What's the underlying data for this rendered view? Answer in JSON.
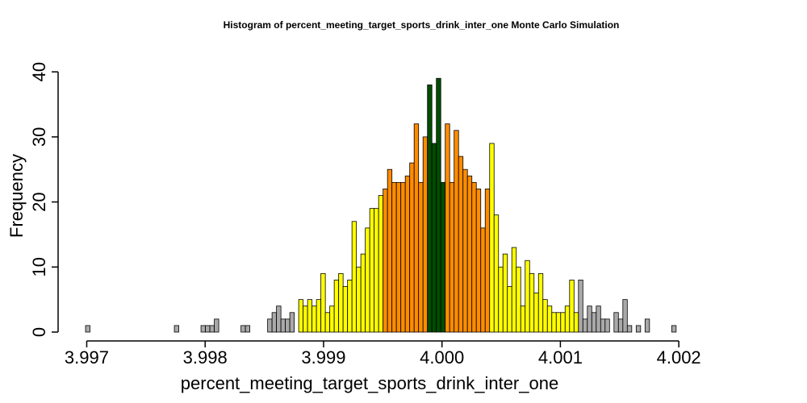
{
  "chart_data": {
    "type": "bar",
    "title": "Histogram of  percent_meeting_target_sports_drink_inter_one  Monte Carlo Simulation",
    "xlabel": "percent_meeting_target_sports_drink_inter_one",
    "ylabel": "Frequency",
    "x_ticks": [
      "3.997",
      "3.998",
      "3.999",
      "4.000",
      "4.001",
      "4.002"
    ],
    "x_tick_values": [
      3.997,
      3.998,
      3.999,
      4.0,
      4.001,
      4.002
    ],
    "y_ticks": [
      "0",
      "10",
      "20",
      "30",
      "40"
    ],
    "y_tick_values": [
      0,
      10,
      20,
      30,
      40
    ],
    "xlim": [
      3.99699,
      4.00266
    ],
    "ylim": [
      0,
      42
    ],
    "bin_start": 3.99699,
    "bin_width": 3.75e-05,
    "counts": [
      1,
      0,
      0,
      0,
      0,
      0,
      0,
      0,
      0,
      0,
      0,
      0,
      0,
      0,
      0,
      0,
      0,
      0,
      0,
      0,
      1,
      0,
      0,
      0,
      0,
      0,
      1,
      1,
      1,
      2,
      0,
      0,
      0,
      0,
      0,
      1,
      1,
      0,
      0,
      0,
      0,
      2,
      3,
      4,
      2,
      2,
      3,
      0,
      5,
      4,
      5,
      4,
      5,
      9,
      3,
      4,
      8,
      9,
      7,
      8,
      17,
      10,
      12,
      16,
      19,
      19,
      21,
      22,
      25,
      23,
      23,
      23,
      24,
      26,
      32,
      23,
      30,
      38,
      29,
      39,
      23,
      32,
      23,
      31,
      27,
      25,
      24,
      23,
      22,
      16,
      22,
      29,
      18,
      10,
      12,
      7,
      13,
      10,
      4,
      11,
      9,
      6,
      9,
      5,
      4,
      3,
      3,
      3,
      4,
      8,
      3,
      8,
      2,
      4,
      3,
      4,
      2,
      2,
      0,
      3,
      2,
      5,
      1,
      0,
      1,
      0,
      2,
      0,
      0,
      0,
      0,
      0,
      1
    ],
    "colors": {
      "tail": "#a9a9a9",
      "outer": "#ffff00",
      "inner": "#ff8c00",
      "center": "#004d00",
      "edge": "#000000"
    },
    "color_regions": [
      {
        "from": 3.99699,
        "to": 3.99877,
        "color": "tail"
      },
      {
        "from": 3.99877,
        "to": 3.99952,
        "color": "outer"
      },
      {
        "from": 3.99952,
        "to": 3.99986,
        "color": "inner"
      },
      {
        "from": 3.99986,
        "to": 4.00001,
        "color": "center"
      },
      {
        "from": 4.00001,
        "to": 4.00042,
        "color": "inner"
      },
      {
        "from": 4.00042,
        "to": 4.00116,
        "color": "outer"
      },
      {
        "from": 4.00116,
        "to": 4.00266,
        "color": "tail"
      }
    ]
  }
}
